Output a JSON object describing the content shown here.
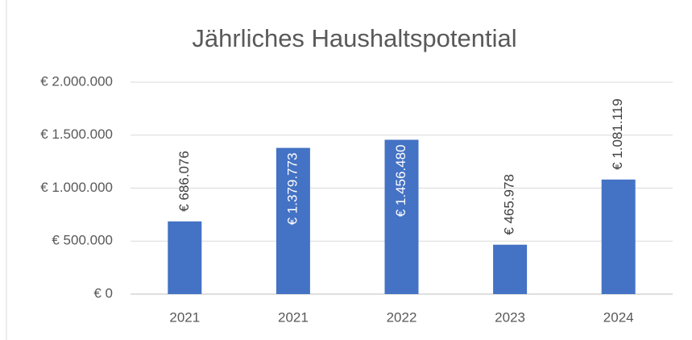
{
  "chart_data": {
    "type": "bar",
    "title": "Jährliches Haushaltspotential",
    "categories": [
      "2021",
      "2021",
      "2022",
      "2023",
      "2024"
    ],
    "values": [
      686076,
      1379773,
      1456480,
      465978,
      1081119
    ],
    "value_labels": [
      "€ 686.076",
      "€ 1.379.773",
      "€ 1.456.480",
      "€ 465.978",
      "€ 1.081.119"
    ],
    "color": "#4472c4",
    "ylim": [
      0,
      2000000
    ],
    "yticks": [
      {
        "value": 0,
        "label": "€ 0"
      },
      {
        "value": 500000,
        "label": "€ 500.000"
      },
      {
        "value": 1000000,
        "label": "€ 1.000.000"
      },
      {
        "value": 1500000,
        "label": "€ 1.500.000"
      },
      {
        "value": 2000000,
        "label": "€ 2.000.000"
      }
    ],
    "grid": true
  }
}
